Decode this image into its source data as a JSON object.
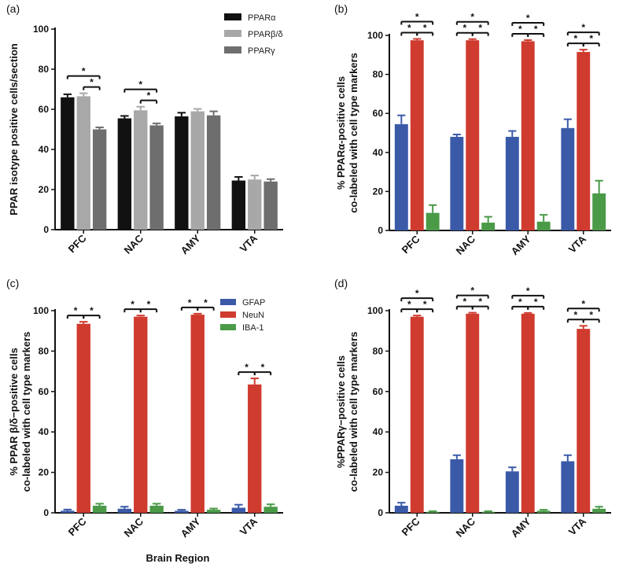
{
  "figure": {
    "xlabel_bottom": "Brain Region",
    "colors": {
      "PPARα": "#111111",
      "PPARβ/δ": "#a8a8a8",
      "PPARγ": "#6e6e6e",
      "GFAP": "#3a5aa8",
      "NeuN": "#d03b2f",
      "IBA-1": "#4a9a48"
    }
  },
  "chart_data": [
    {
      "panel": "(a)",
      "type": "bar",
      "title": "",
      "ylabel": [
        "PPAR isotype positive cells/section"
      ],
      "xlabel": "",
      "ylim": [
        0,
        100
      ],
      "yticks": [
        0,
        20,
        40,
        60,
        80,
        100
      ],
      "categories": [
        "PFC",
        "NAC",
        "AMY",
        "VTA"
      ],
      "legend": "top-right",
      "series": [
        {
          "name": "PPARα",
          "values": [
            66,
            55.5,
            56.5,
            24.5
          ],
          "errors": [
            1.5,
            1.2,
            1.8,
            1.8
          ]
        },
        {
          "name": "PPARβ/δ",
          "values": [
            66.5,
            59.5,
            59,
            25
          ],
          "errors": [
            1.5,
            1.8,
            1.2,
            2.0
          ]
        },
        {
          "name": "PPARγ",
          "values": [
            50,
            52,
            57,
            24
          ],
          "errors": [
            1.0,
            1.0,
            2.0,
            1.2
          ]
        }
      ],
      "significance": [
        {
          "cat": 0,
          "from": 0,
          "to": 2,
          "label": "*"
        },
        {
          "cat": 0,
          "from": 1,
          "to": 2,
          "label": "*"
        },
        {
          "cat": 1,
          "from": 0,
          "to": 2,
          "label": "*"
        },
        {
          "cat": 1,
          "from": 1,
          "to": 2,
          "label": "*"
        }
      ]
    },
    {
      "panel": "(b)",
      "type": "bar",
      "title": "",
      "ylabel": [
        "% PPARα-positive cells",
        "co-labeled with cell type markers"
      ],
      "xlabel": "",
      "ylim": [
        0,
        100
      ],
      "yticks": [
        0,
        20,
        40,
        60,
        80,
        100
      ],
      "categories": [
        "PFC",
        "NAC",
        "AMY",
        "VTA"
      ],
      "series": [
        {
          "name": "GFAP",
          "values": [
            54.5,
            48,
            48,
            52.5
          ],
          "errors": [
            4.5,
            1.2,
            3.0,
            4.5
          ]
        },
        {
          "name": "NeuN",
          "values": [
            97.5,
            97.5,
            97,
            91.5
          ],
          "errors": [
            0.7,
            0.6,
            0.6,
            1.2
          ]
        },
        {
          "name": "IBA-1",
          "values": [
            9,
            4,
            4.5,
            19
          ],
          "errors": [
            4.0,
            3.0,
            3.5,
            6.5
          ]
        }
      ],
      "significance": [
        {
          "cat": 0,
          "from": 0,
          "to": 2,
          "label": "*"
        },
        {
          "cat": 0,
          "from": 0,
          "to": 1,
          "label": "*"
        },
        {
          "cat": 0,
          "from": 1,
          "to": 2,
          "label": "*"
        },
        {
          "cat": 1,
          "from": 0,
          "to": 2,
          "label": "*"
        },
        {
          "cat": 1,
          "from": 0,
          "to": 1,
          "label": "*"
        },
        {
          "cat": 1,
          "from": 1,
          "to": 2,
          "label": "*"
        },
        {
          "cat": 2,
          "from": 0,
          "to": 2,
          "label": "*"
        },
        {
          "cat": 2,
          "from": 0,
          "to": 1,
          "label": "*"
        },
        {
          "cat": 2,
          "from": 1,
          "to": 2,
          "label": "*"
        },
        {
          "cat": 3,
          "from": 0,
          "to": 2,
          "label": "*"
        },
        {
          "cat": 3,
          "from": 0,
          "to": 1,
          "label": "*"
        },
        {
          "cat": 3,
          "from": 1,
          "to": 2,
          "label": "*"
        }
      ]
    },
    {
      "panel": "(c)",
      "type": "bar",
      "title": "",
      "ylabel": [
        "% PPAR β/δ−positive cells",
        "co-labeled with cell type markers"
      ],
      "xlabel": "Brain Region",
      "ylim": [
        0,
        100
      ],
      "yticks": [
        0,
        20,
        40,
        60,
        80,
        100
      ],
      "categories": [
        "PFC",
        "NAC",
        "AMY",
        "VTA"
      ],
      "legend": "top-right",
      "series": [
        {
          "name": "GFAP",
          "values": [
            1,
            2,
            1,
            2.5
          ],
          "errors": [
            0.6,
            1.0,
            0.5,
            1.5
          ]
        },
        {
          "name": "NeuN",
          "values": [
            93.5,
            97,
            98,
            63.5
          ],
          "errors": [
            1.0,
            0.6,
            0.5,
            3.0
          ]
        },
        {
          "name": "IBA-1",
          "values": [
            3.5,
            3.5,
            1.5,
            3
          ],
          "errors": [
            1.0,
            1.0,
            0.6,
            1.2
          ]
        }
      ],
      "significance": [
        {
          "cat": 0,
          "from": 0,
          "to": 1,
          "label": "*"
        },
        {
          "cat": 0,
          "from": 1,
          "to": 2,
          "label": "*"
        },
        {
          "cat": 1,
          "from": 0,
          "to": 1,
          "label": "*"
        },
        {
          "cat": 1,
          "from": 1,
          "to": 2,
          "label": "*"
        },
        {
          "cat": 2,
          "from": 0,
          "to": 1,
          "label": "*"
        },
        {
          "cat": 2,
          "from": 1,
          "to": 2,
          "label": "*"
        },
        {
          "cat": 3,
          "from": 0,
          "to": 1,
          "label": "*"
        },
        {
          "cat": 3,
          "from": 1,
          "to": 2,
          "label": "*"
        }
      ]
    },
    {
      "panel": "(d)",
      "type": "bar",
      "title": "",
      "ylabel": [
        "%PPARγ−positive cells",
        "co-labeled with cell type markers"
      ],
      "xlabel": "",
      "ylim": [
        0,
        100
      ],
      "yticks": [
        0,
        20,
        40,
        60,
        80,
        100
      ],
      "categories": [
        "PFC",
        "NAC",
        "AMY",
        "VTA"
      ],
      "series": [
        {
          "name": "GFAP",
          "values": [
            3.5,
            26.5,
            20.5,
            25.5
          ],
          "errors": [
            1.5,
            2.0,
            2.0,
            3.0
          ]
        },
        {
          "name": "NeuN",
          "values": [
            97,
            98.5,
            98.5,
            91
          ],
          "errors": [
            0.6,
            0.5,
            0.4,
            1.5
          ]
        },
        {
          "name": "IBA-1",
          "values": [
            0.5,
            0.5,
            1,
            2
          ],
          "errors": [
            0.3,
            0.3,
            0.5,
            1.0
          ]
        }
      ],
      "significance": [
        {
          "cat": 0,
          "from": 0,
          "to": 2,
          "label": "*"
        },
        {
          "cat": 0,
          "from": 0,
          "to": 1,
          "label": "*"
        },
        {
          "cat": 0,
          "from": 1,
          "to": 2,
          "label": "*"
        },
        {
          "cat": 1,
          "from": 0,
          "to": 2,
          "label": "*"
        },
        {
          "cat": 1,
          "from": 0,
          "to": 1,
          "label": "*"
        },
        {
          "cat": 1,
          "from": 1,
          "to": 2,
          "label": "*"
        },
        {
          "cat": 2,
          "from": 0,
          "to": 2,
          "label": "*"
        },
        {
          "cat": 2,
          "from": 0,
          "to": 1,
          "label": "*"
        },
        {
          "cat": 2,
          "from": 1,
          "to": 2,
          "label": "*"
        },
        {
          "cat": 3,
          "from": 0,
          "to": 2,
          "label": "*"
        },
        {
          "cat": 3,
          "from": 0,
          "to": 1,
          "label": "*"
        },
        {
          "cat": 3,
          "from": 1,
          "to": 2,
          "label": "*"
        }
      ]
    }
  ]
}
